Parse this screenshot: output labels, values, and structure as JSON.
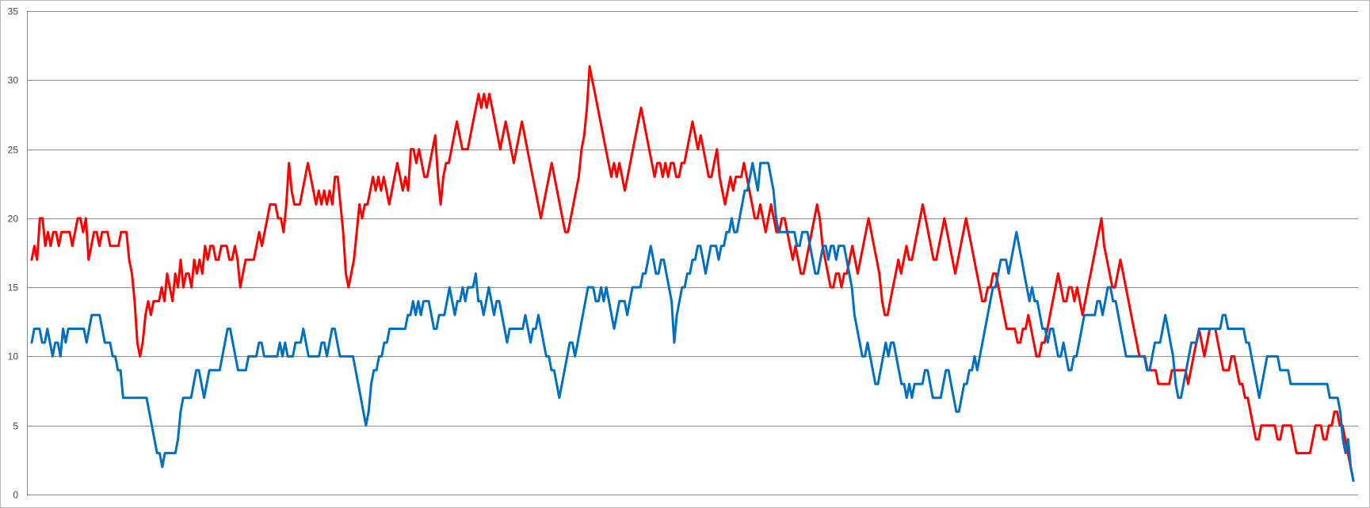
{
  "chart_data": {
    "type": "line",
    "title": "",
    "xlabel": "",
    "ylabel": "",
    "ylim": [
      0,
      35
    ],
    "yticks": [
      "0",
      "5",
      "10",
      "15",
      "20",
      "25",
      "30",
      "35"
    ],
    "grid": true,
    "legend": "none",
    "series": [
      {
        "color": "#ff0000",
        "values": [
          17,
          18,
          17,
          20,
          20,
          18,
          19,
          18,
          19,
          19,
          18,
          19,
          19,
          19,
          19,
          18,
          19,
          20,
          20,
          19,
          20,
          17,
          18,
          19,
          19,
          18,
          19,
          19,
          19,
          18,
          18,
          18,
          18,
          19,
          19,
          19,
          17,
          16,
          14,
          11,
          10,
          11,
          13,
          14,
          13,
          14,
          14,
          14,
          15,
          14,
          16,
          15,
          14,
          16,
          15,
          17,
          15,
          16,
          16,
          15,
          17,
          16,
          17,
          16,
          18,
          17,
          18,
          18,
          17,
          17,
          18,
          18,
          18,
          17,
          17,
          18,
          17,
          15,
          16,
          17,
          17,
          17,
          17,
          18,
          19,
          18,
          19,
          20,
          21,
          21,
          21,
          20,
          20,
          19,
          21,
          24,
          22,
          21,
          21,
          21,
          22,
          23,
          24,
          23,
          22,
          21,
          22,
          21,
          22,
          21,
          22,
          21,
          23,
          23,
          21,
          19,
          16,
          15,
          16,
          17,
          19,
          21,
          20,
          21,
          21,
          22,
          23,
          22,
          23,
          22,
          23,
          22,
          21,
          22,
          23,
          24,
          23,
          22,
          23,
          22,
          25,
          25,
          24,
          25,
          24,
          23,
          23,
          24,
          25,
          26,
          23,
          21,
          23,
          24,
          24,
          25,
          26,
          27,
          26,
          25,
          25,
          25,
          26,
          27,
          28,
          29,
          28,
          29,
          28,
          29,
          28,
          27,
          26,
          25,
          26,
          27,
          26,
          25,
          24,
          25,
          26,
          27,
          26,
          25,
          24,
          23,
          22,
          21,
          20,
          21,
          22,
          23,
          24,
          23,
          22,
          21,
          20,
          19,
          19,
          20,
          21,
          22,
          23,
          25,
          26,
          28,
          31,
          30,
          29,
          28,
          27,
          26,
          25,
          24,
          23,
          24,
          23,
          24,
          23,
          22,
          23,
          24,
          25,
          26,
          27,
          28,
          27,
          26,
          25,
          24,
          23,
          24,
          24,
          23,
          24,
          23,
          24,
          24,
          23,
          23,
          24,
          24,
          25,
          26,
          27,
          26,
          25,
          26,
          25,
          24,
          23,
          23,
          24,
          25,
          23,
          22,
          21,
          22,
          23,
          22,
          23,
          23,
          23,
          24,
          23,
          22,
          21,
          20,
          20,
          21,
          20,
          19,
          20,
          21,
          20,
          19,
          19,
          20,
          20,
          19,
          18,
          17,
          18,
          17,
          16,
          16,
          17,
          18,
          19,
          20,
          21,
          20,
          18,
          17,
          16,
          15,
          15,
          16,
          16,
          15,
          16,
          16,
          17,
          18,
          17,
          16,
          17,
          18,
          19,
          20,
          19,
          18,
          17,
          16,
          14,
          13,
          13,
          14,
          15,
          16,
          17,
          16,
          17,
          18,
          17,
          17,
          18,
          19,
          20,
          21,
          20,
          19,
          18,
          17,
          17,
          18,
          19,
          20,
          19,
          18,
          17,
          16,
          17,
          18,
          19,
          20,
          19,
          18,
          17,
          16,
          15,
          14,
          14,
          15,
          15,
          16,
          16,
          15,
          14,
          13,
          12,
          12,
          12,
          12,
          11,
          11,
          12,
          12,
          13,
          12,
          11,
          10,
          10,
          11,
          11,
          12,
          13,
          14,
          15,
          16,
          15,
          14,
          14,
          15,
          15,
          14,
          15,
          14,
          13,
          14,
          15,
          16,
          17,
          18,
          19,
          20,
          18,
          17,
          16,
          15,
          15,
          16,
          17,
          16,
          15,
          14,
          13,
          12,
          11,
          10,
          10,
          10,
          9,
          9,
          9,
          9,
          8,
          8,
          8,
          8,
          8,
          9,
          9,
          9,
          9,
          9,
          9,
          8,
          9,
          10,
          11,
          12,
          11,
          10,
          11,
          12,
          12,
          12,
          11,
          10,
          9,
          9,
          9,
          10,
          10,
          9,
          8,
          8,
          7,
          7,
          6,
          5,
          4,
          4,
          5,
          5,
          5,
          5,
          5,
          5,
          4,
          4,
          5,
          5,
          5,
          5,
          4,
          3,
          3,
          3,
          3,
          3,
          3,
          4,
          5,
          5,
          5,
          4,
          4,
          5,
          5,
          6,
          6,
          5,
          5,
          4,
          3,
          2,
          1
        ]
      },
      {
        "color": "#0070c0",
        "values": [
          11,
          12,
          12,
          12,
          11,
          11,
          12,
          11,
          10,
          11,
          11,
          10,
          12,
          11,
          12,
          12,
          12,
          12,
          12,
          12,
          12,
          11,
          12,
          13,
          13,
          13,
          13,
          12,
          11,
          11,
          11,
          10,
          10,
          9,
          9,
          7,
          7,
          7,
          7,
          7,
          7,
          7,
          7,
          7,
          7,
          6,
          5,
          4,
          3,
          3,
          2,
          3,
          3,
          3,
          3,
          3,
          4,
          6,
          7,
          7,
          7,
          7,
          8,
          9,
          9,
          8,
          7,
          8,
          9,
          9,
          9,
          9,
          9,
          10,
          11,
          12,
          12,
          11,
          10,
          9,
          9,
          9,
          9,
          10,
          10,
          10,
          10,
          11,
          11,
          10,
          10,
          10,
          10,
          10,
          10,
          11,
          10,
          11,
          10,
          10,
          10,
          11,
          11,
          11,
          12,
          11,
          10,
          10,
          10,
          10,
          10,
          11,
          11,
          10,
          11,
          12,
          12,
          11,
          10,
          10,
          10,
          10,
          10,
          10,
          9,
          8,
          7,
          6,
          5,
          6,
          8,
          9,
          9,
          10,
          10,
          11,
          11,
          12,
          12,
          12,
          12,
          12,
          12,
          12,
          13,
          13,
          14,
          13,
          14,
          13,
          14,
          14,
          14,
          13,
          12,
          12,
          13,
          13,
          13,
          14,
          15,
          14,
          13,
          14,
          14,
          15,
          14,
          15,
          15,
          15,
          16,
          14,
          14,
          13,
          14,
          15,
          14,
          13,
          14,
          14,
          13,
          12,
          11,
          12,
          12,
          12,
          12,
          12,
          12,
          13,
          12,
          11,
          12,
          12,
          13,
          12,
          11,
          10,
          10,
          9,
          9,
          8,
          7,
          8,
          9,
          10,
          11,
          11,
          10,
          11,
          12,
          13,
          14,
          15,
          15,
          15,
          14,
          14,
          15,
          14,
          15,
          14,
          13,
          12,
          13,
          14,
          14,
          14,
          13,
          14,
          15,
          15,
          15,
          15,
          16,
          16,
          17,
          18,
          17,
          16,
          16,
          17,
          17,
          16,
          15,
          14,
          11,
          13,
          14,
          15,
          15,
          16,
          16,
          17,
          17,
          18,
          18,
          17,
          16,
          17,
          18,
          18,
          18,
          17,
          18,
          18,
          19,
          19,
          20,
          19,
          19,
          20,
          21,
          22,
          22,
          23,
          24,
          23,
          22,
          24,
          24,
          24,
          24,
          23,
          22,
          20,
          19,
          19,
          19,
          19,
          19,
          19,
          19,
          18,
          18,
          19,
          19,
          19,
          18,
          17,
          16,
          16,
          17,
          18,
          18,
          17,
          18,
          18,
          17,
          18,
          18,
          18,
          17,
          16,
          15,
          13,
          12,
          11,
          10,
          10,
          11,
          10,
          9,
          8,
          8,
          9,
          10,
          11,
          10,
          11,
          11,
          10,
          9,
          8,
          8,
          7,
          8,
          7,
          8,
          8,
          8,
          8,
          9,
          9,
          8,
          7,
          7,
          7,
          7,
          8,
          9,
          9,
          8,
          7,
          6,
          6,
          7,
          8,
          8,
          9,
          9,
          10,
          9,
          10,
          11,
          12,
          13,
          14,
          15,
          15,
          16,
          17,
          17,
          17,
          16,
          17,
          18,
          19,
          18,
          17,
          16,
          15,
          14,
          15,
          14,
          14,
          13,
          12,
          12,
          11,
          12,
          12,
          11,
          10,
          10,
          11,
          10,
          9,
          9,
          10,
          10,
          11,
          12,
          13,
          13,
          13,
          13,
          13,
          14,
          14,
          13,
          14,
          15,
          15,
          14,
          14,
          13,
          12,
          11,
          10,
          10,
          10,
          10,
          10,
          10,
          10,
          10,
          9,
          9,
          10,
          11,
          11,
          11,
          12,
          13,
          12,
          11,
          10,
          8,
          7,
          7,
          8,
          9,
          10,
          11,
          11,
          11,
          12,
          12,
          12,
          12,
          12,
          12,
          12,
          12,
          12,
          13,
          13,
          12,
          12,
          12,
          12,
          12,
          12,
          12,
          11,
          11,
          10,
          9,
          8,
          7,
          8,
          9,
          10,
          10,
          10,
          10,
          10,
          9,
          9,
          9,
          9,
          8,
          8,
          8,
          8,
          8,
          8,
          8,
          8,
          8,
          8,
          8,
          8,
          8,
          8,
          8,
          7,
          7,
          7,
          7,
          6,
          4,
          3,
          4,
          2,
          1
        ]
      }
    ]
  }
}
